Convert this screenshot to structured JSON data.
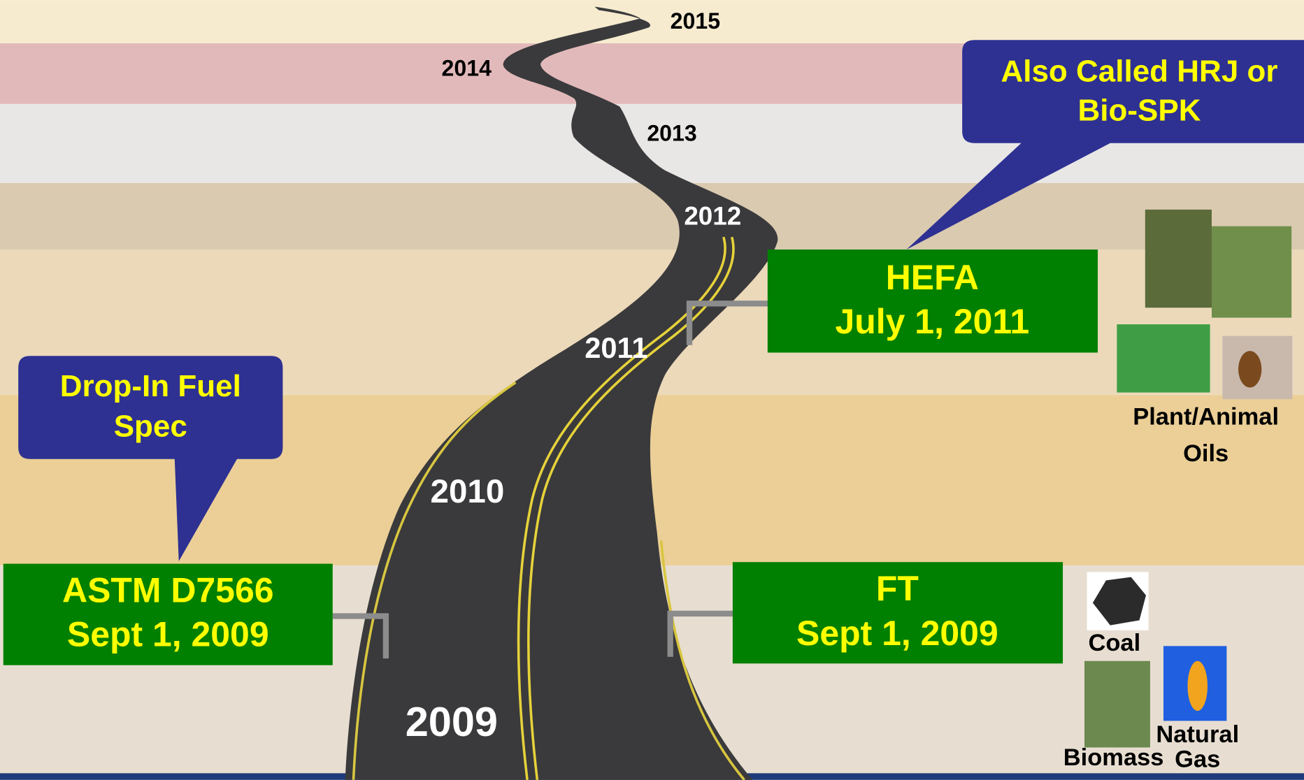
{
  "years": [
    "2015",
    "2014",
    "2013",
    "2012",
    "2011",
    "2010",
    "2009"
  ],
  "callouts": [
    {
      "lines": [
        "Drop-In Fuel",
        "Spec"
      ]
    },
    {
      "lines": [
        "Also Called HRJ or",
        "Bio-SPK"
      ]
    }
  ],
  "milestones": [
    {
      "lines": [
        "ASTM D7566",
        "Sept 1, 2009"
      ]
    },
    {
      "lines": [
        "FT",
        "Sept 1, 2009"
      ]
    },
    {
      "lines": [
        "HEFA",
        "July 1, 2011"
      ]
    }
  ],
  "feedstocks": [
    {
      "lines": [
        "Plant/Animal",
        "Oils"
      ]
    },
    {
      "lines": [
        "Coal"
      ]
    },
    {
      "lines": [
        "Biomass"
      ]
    },
    {
      "lines": [
        "Natural",
        "Gas"
      ]
    }
  ]
}
